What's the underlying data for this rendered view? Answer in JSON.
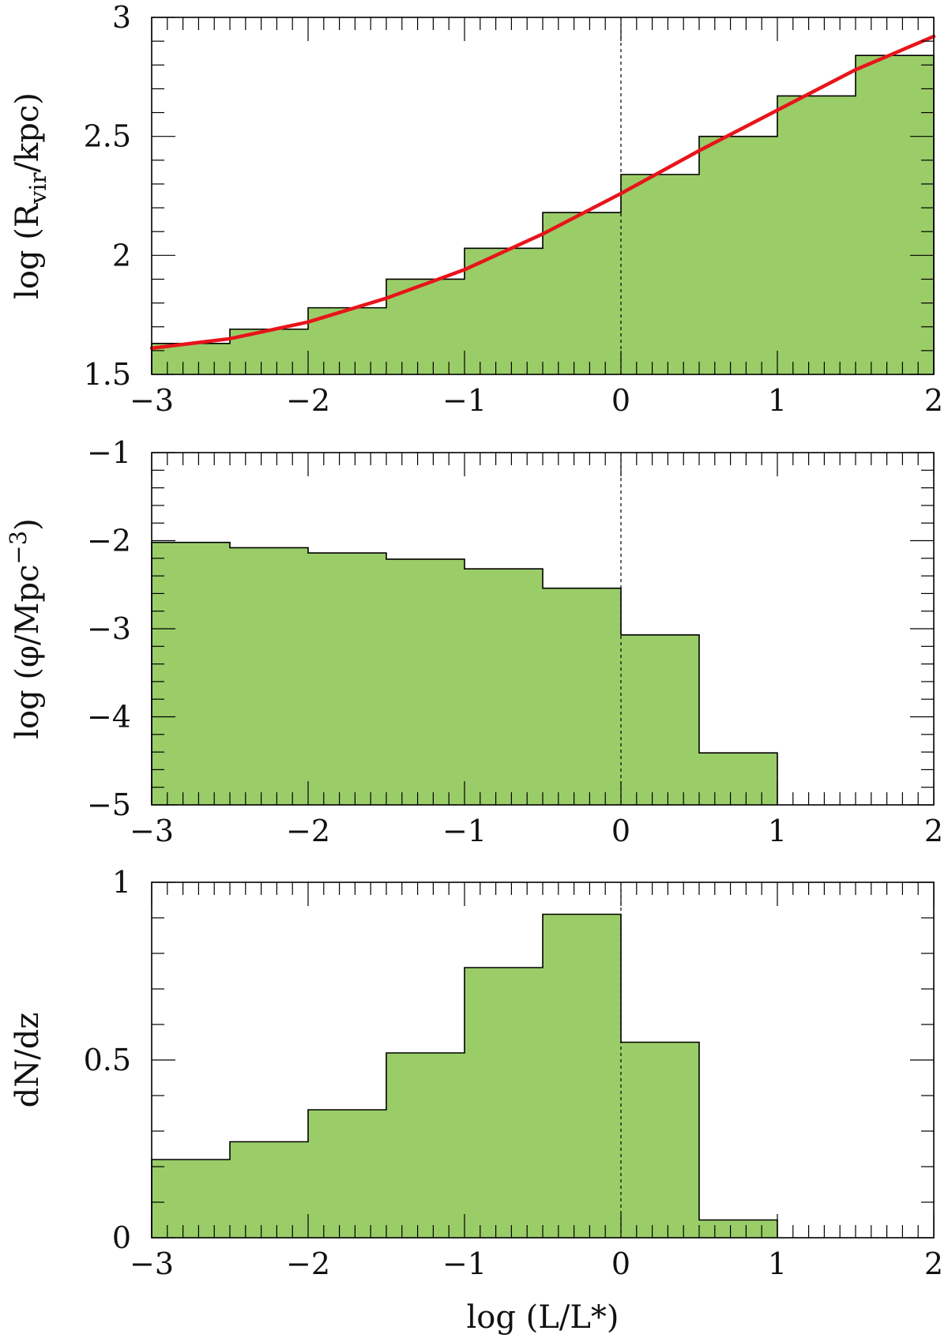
{
  "chart_data": [
    {
      "type": "bar",
      "style": "step-histogram",
      "bin_edges": [
        -3,
        -2.5,
        -2,
        -1.5,
        -1,
        -0.5,
        0,
        0.5,
        1,
        1.5,
        2
      ],
      "values": [
        1.63,
        1.69,
        1.78,
        1.9,
        2.03,
        2.18,
        2.34,
        2.5,
        2.67,
        2.84
      ],
      "xlim": [
        -3,
        2
      ],
      "ylim": [
        1.5,
        3
      ],
      "x_ticks": [
        -3,
        -2,
        -1,
        0,
        1,
        2
      ],
      "x_tick_labels": [
        "−3",
        "−2",
        "−1",
        "0",
        "1",
        "2"
      ],
      "y_ticks": [
        1.5,
        2,
        2.5,
        3
      ],
      "y_tick_labels": [
        "1.5",
        "2",
        "2.5",
        "3"
      ],
      "ylabel_parts": {
        "pre": "log (R",
        "sub": "vir",
        "post": "/kpc)"
      },
      "fit_curve": {
        "color": "#e8141a",
        "x": [
          -3,
          -2.5,
          -2,
          -1.5,
          -1,
          -0.5,
          0,
          0.5,
          1,
          1.5,
          2
        ],
        "y": [
          1.61,
          1.65,
          1.72,
          1.82,
          1.94,
          2.09,
          2.26,
          2.44,
          2.61,
          2.78,
          2.92
        ]
      },
      "reference_line_x": 0,
      "fill_color": "#9acd68"
    },
    {
      "type": "bar",
      "style": "step-histogram",
      "bin_edges": [
        -3,
        -2.5,
        -2,
        -1.5,
        -1,
        -0.5,
        0,
        0.5,
        1,
        1.5,
        2
      ],
      "values": [
        -2.02,
        -2.08,
        -2.14,
        -2.21,
        -2.32,
        -2.54,
        -3.07,
        -4.41,
        null,
        null
      ],
      "xlim": [
        -3,
        2
      ],
      "ylim": [
        -5,
        -1
      ],
      "x_ticks": [
        -3,
        -2,
        -1,
        0,
        1,
        2
      ],
      "x_tick_labels": [
        "−3",
        "−2",
        "−1",
        "0",
        "1",
        "2"
      ],
      "y_ticks": [
        -5,
        -4,
        -3,
        -2,
        -1
      ],
      "y_tick_labels": [
        "−5",
        "−4",
        "−3",
        "−2",
        "−1"
      ],
      "ylabel_parts": {
        "pre": "log (φ/Mpc",
        "sup": "−3",
        "post": ")"
      },
      "reference_line_x": 0,
      "fill_color": "#9acd68"
    },
    {
      "type": "bar",
      "style": "step-histogram",
      "bin_edges": [
        -3,
        -2.5,
        -2,
        -1.5,
        -1,
        -0.5,
        0,
        0.5,
        1,
        1.5,
        2
      ],
      "values": [
        0.22,
        0.27,
        0.36,
        0.52,
        0.76,
        0.91,
        0.55,
        0.05,
        null,
        null
      ],
      "xlim": [
        -3,
        2
      ],
      "ylim": [
        0,
        1
      ],
      "x_ticks": [
        -3,
        -2,
        -1,
        0,
        1,
        2
      ],
      "x_tick_labels": [
        "−3",
        "−2",
        "−1",
        "0",
        "1",
        "2"
      ],
      "y_ticks": [
        0,
        0.5,
        1
      ],
      "y_tick_labels": [
        "0",
        "0.5",
        "1"
      ],
      "ylabel_parts": {
        "pre": "dN/dz"
      },
      "xlabel": "log (L/L*)",
      "reference_line_x": 0,
      "fill_color": "#9acd68"
    }
  ]
}
